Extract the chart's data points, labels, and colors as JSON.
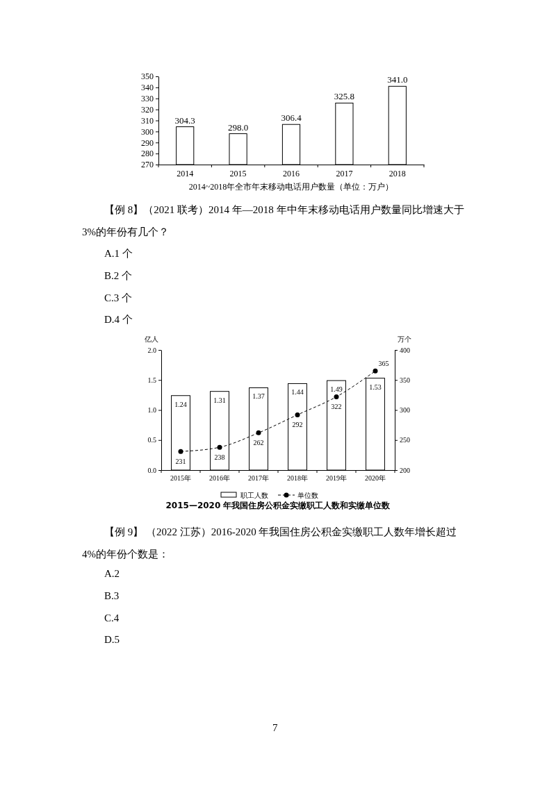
{
  "chart_data": [
    {
      "type": "bar",
      "title": "2014~2018年全市年末移动电话用户数量（单位：万户）",
      "categories": [
        "2014",
        "2015",
        "2016",
        "2017",
        "2018"
      ],
      "values": [
        304.3,
        298.0,
        306.4,
        325.8,
        341.0
      ],
      "value_labels": [
        "304.3",
        "298.0",
        "306.4",
        "325.8",
        "341.0"
      ],
      "color": "#ffffff",
      "ylim": [
        270,
        350
      ],
      "yticks": [
        270,
        280,
        290,
        300,
        310,
        320,
        330,
        340,
        350
      ],
      "annotations": [
        "【例 8】（2021 联考）2014 年—2018 年中年末移动电话用户数量同比增速大于 3%的年份有几个？",
        "A.1 个",
        "B.2 个",
        "C.3 个",
        "D.4 个"
      ]
    },
    {
      "type": "bar",
      "title": "2015—2020 年我国住房公积金实缴职工人数和实缴单位数",
      "ylabel": "亿人",
      "y2label": "万个",
      "categories": [
        "2015年",
        "2016年",
        "2017年",
        "2018年",
        "2019年",
        "2020年"
      ],
      "series": [
        {
          "name": "职工人数",
          "type": "bar",
          "color": "#ffffff",
          "values": [
            1.24,
            1.31,
            1.37,
            1.44,
            1.49,
            1.53
          ]
        },
        {
          "name": "单位数",
          "type": "line",
          "axis": "y2",
          "color": "#000000",
          "values": [
            231,
            238,
            262,
            292,
            322,
            365
          ]
        }
      ],
      "ylim": [
        0,
        2
      ],
      "yticks": [
        {
          "value": 0,
          "label": "0.0"
        },
        0.5,
        {
          "value": 1,
          "label": "1.0"
        },
        1.5,
        {
          "value": 2,
          "label": "2.0"
        }
      ],
      "y2lim": [
        200,
        400
      ],
      "y2ticks": [
        200,
        250,
        300,
        350,
        400
      ],
      "data_labels": true,
      "legend": "bottom",
      "marker": "circle",
      "line_style": "dashed",
      "annotations": [
        "【例 9】 （2022 江苏）2016-2020 年我国住房公积金实缴职工人数年增长超过 4%的年份个数是：",
        "A.2",
        "B.3",
        "C.4",
        "D.5",
        "7"
      ]
    }
  ]
}
